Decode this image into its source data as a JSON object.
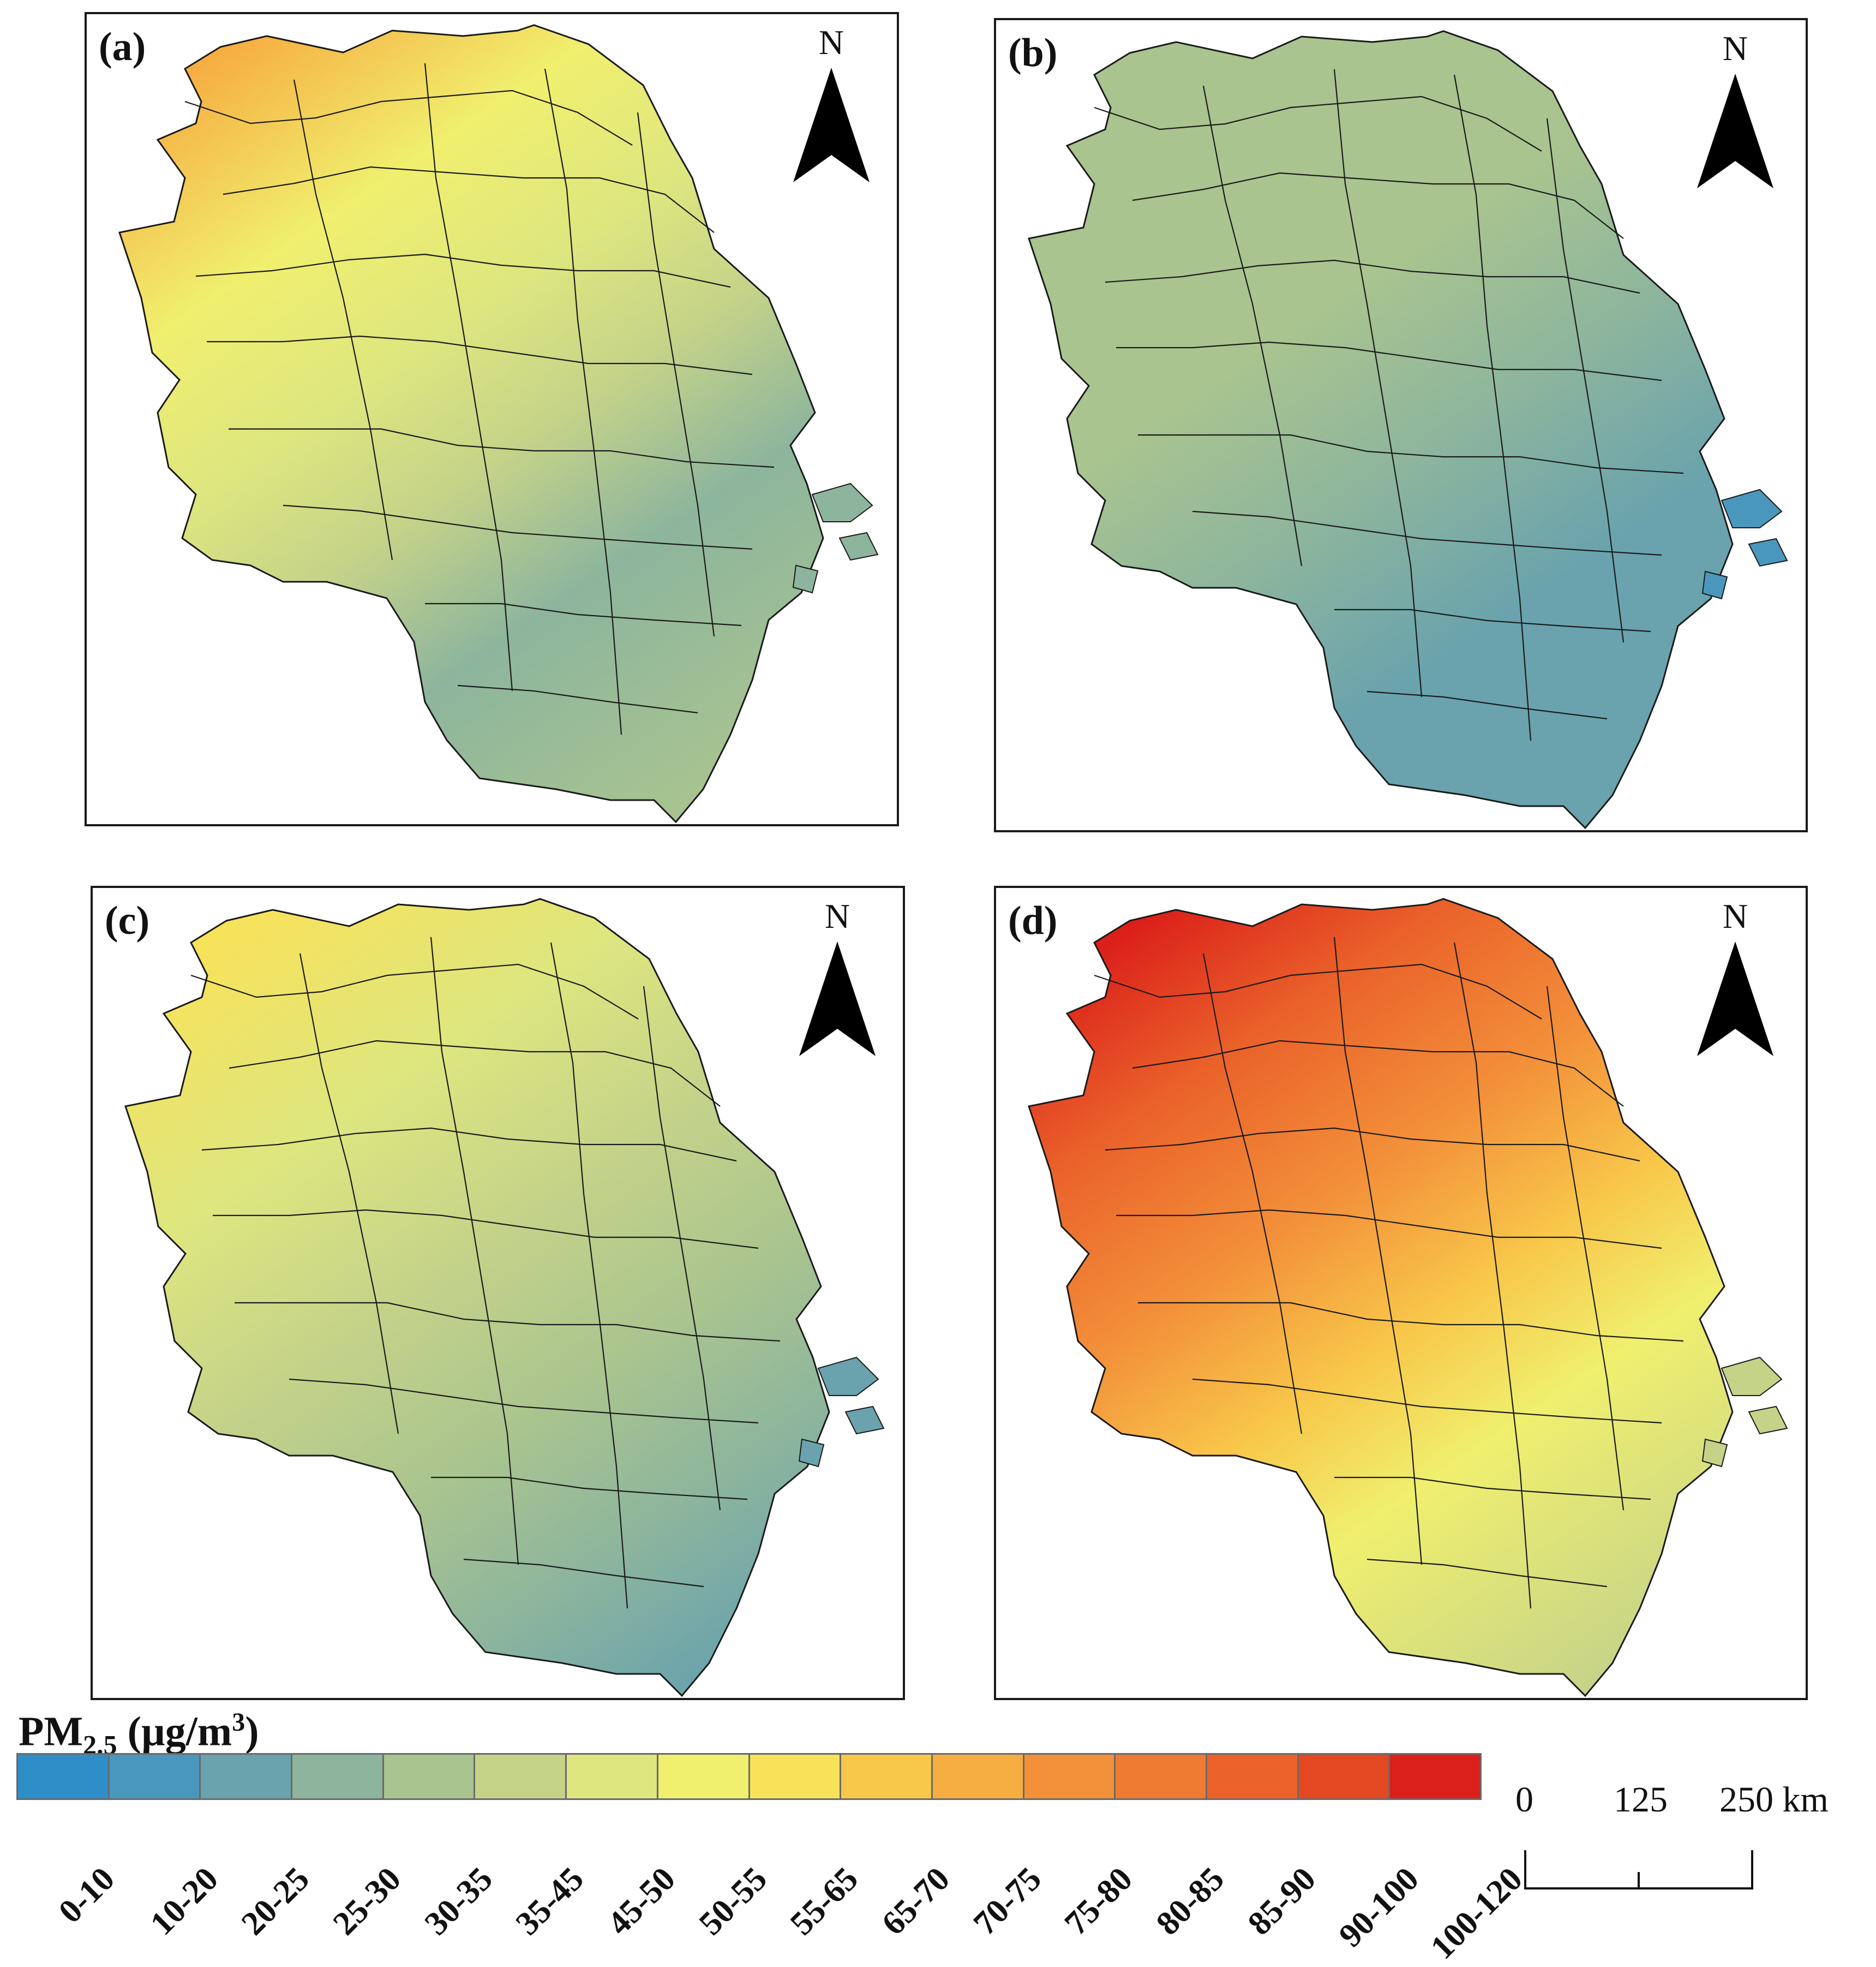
{
  "legend": {
    "title_main": "PM",
    "title_sub": "2.5",
    "title_unit": "(µg/m",
    "title_sup": "3",
    "title_close": ")",
    "classes": [
      {
        "label": "0-10",
        "color": "#2e8fc8"
      },
      {
        "label": "10-20",
        "color": "#4a97bd"
      },
      {
        "label": "20-25",
        "color": "#6aa3ad"
      },
      {
        "label": "25-30",
        "color": "#8db59d"
      },
      {
        "label": "30-35",
        "color": "#a9c48f"
      },
      {
        "label": "35-45",
        "color": "#c5d389"
      },
      {
        "label": "45-50",
        "color": "#dde67f"
      },
      {
        "label": "50-55",
        "color": "#f0ef6e"
      },
      {
        "label": "55-65",
        "color": "#f8e25a"
      },
      {
        "label": "65-70",
        "color": "#f8c84a"
      },
      {
        "label": "70-75",
        "color": "#f6ae42"
      },
      {
        "label": "75-80",
        "color": "#f3913a"
      },
      {
        "label": "80-85",
        "color": "#ef7a32"
      },
      {
        "label": "85-90",
        "color": "#ea622a"
      },
      {
        "label": "90-100",
        "color": "#e34822"
      },
      {
        "label": "100-120",
        "color": "#db1f1a"
      }
    ]
  },
  "scale_bar": {
    "labels": [
      "0",
      "125",
      "250 km"
    ]
  },
  "panels": [
    {
      "label": "(a)",
      "north": "N",
      "stops": [
        {
          "offset": "0%",
          "color": "#f6ae42"
        },
        {
          "offset": "22%",
          "color": "#f0ef6e"
        },
        {
          "offset": "40%",
          "color": "#dde67f"
        },
        {
          "offset": "55%",
          "color": "#c5d389"
        },
        {
          "offset": "72%",
          "color": "#8db59d"
        },
        {
          "offset": "100%",
          "color": "#a9c48f"
        }
      ]
    },
    {
      "label": "(b)",
      "north": "N",
      "stops": [
        {
          "offset": "0%",
          "color": "#a9c48f"
        },
        {
          "offset": "35%",
          "color": "#a9c48f"
        },
        {
          "offset": "55%",
          "color": "#8db59d"
        },
        {
          "offset": "75%",
          "color": "#6aa3ad"
        },
        {
          "offset": "100%",
          "color": "#6aa3ad"
        }
      ]
    },
    {
      "label": "(c)",
      "north": "N",
      "stops": [
        {
          "offset": "0%",
          "color": "#f8e25a"
        },
        {
          "offset": "25%",
          "color": "#dde67f"
        },
        {
          "offset": "45%",
          "color": "#c5d389"
        },
        {
          "offset": "65%",
          "color": "#a9c48f"
        },
        {
          "offset": "82%",
          "color": "#8db59d"
        },
        {
          "offset": "100%",
          "color": "#6aa3ad"
        }
      ]
    },
    {
      "label": "(d)",
      "north": "N",
      "stops": [
        {
          "offset": "0%",
          "color": "#db1f1a"
        },
        {
          "offset": "18%",
          "color": "#ea622a"
        },
        {
          "offset": "38%",
          "color": "#f3913a"
        },
        {
          "offset": "55%",
          "color": "#f8c84a"
        },
        {
          "offset": "70%",
          "color": "#f0ef6e"
        },
        {
          "offset": "100%",
          "color": "#c5d389"
        }
      ]
    }
  ]
}
